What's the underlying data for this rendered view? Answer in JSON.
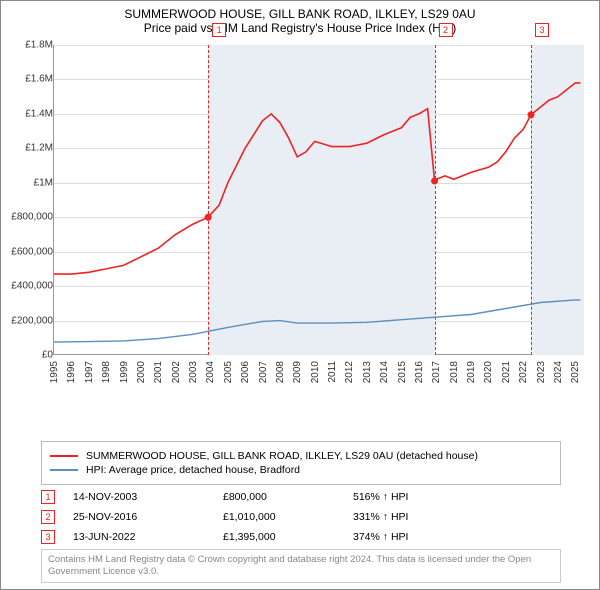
{
  "title": {
    "line1": "SUMMERWOOD HOUSE, GILL BANK ROAD, ILKLEY, LS29 0AU",
    "line2": "Price paid vs. HM Land Registry's House Price Index (HPI)"
  },
  "chart": {
    "type": "line",
    "background_color": "#ffffff",
    "shade_color": "#e8eef4",
    "grid_color": "#dddddd",
    "axis_color": "#999999",
    "xlim_years": [
      1995,
      2025.5
    ],
    "ylim": [
      0,
      1800000
    ],
    "ytick_step": 200000,
    "ytick_labels": [
      "£0",
      "£200,000",
      "£400,000",
      "£600,000",
      "£800,000",
      "£1M",
      "£1.2M",
      "£1.4M",
      "£1.6M",
      "£1.8M"
    ],
    "xtick_years": [
      1995,
      1996,
      1997,
      1998,
      1999,
      2000,
      2001,
      2002,
      2003,
      2004,
      2005,
      2006,
      2007,
      2008,
      2009,
      2010,
      2011,
      2012,
      2013,
      2014,
      2015,
      2016,
      2017,
      2018,
      2019,
      2020,
      2021,
      2022,
      2023,
      2024,
      2025
    ],
    "shaded_ranges": [
      [
        2003.87,
        2016.9
      ],
      [
        2022.45,
        2025.5
      ]
    ],
    "vlines_years": [
      2003.87,
      2016.9,
      2022.45
    ],
    "markers": [
      {
        "label": "1",
        "year": 2003.87,
        "price": 800000
      },
      {
        "label": "2",
        "year": 2016.9,
        "price": 1010000
      },
      {
        "label": "3",
        "year": 2022.45,
        "price": 1395000
      }
    ],
    "marker_top_year_offset": 0,
    "series": [
      {
        "name": "SUMMERWOOD HOUSE, GILL BANK ROAD, ILKLEY, LS29 0AU (detached house)",
        "color": "#ee2222",
        "line_width": 1.6,
        "points": [
          [
            1995,
            470000
          ],
          [
            1996,
            470000
          ],
          [
            1997,
            480000
          ],
          [
            1998,
            500000
          ],
          [
            1999,
            520000
          ],
          [
            2000,
            570000
          ],
          [
            2001,
            620000
          ],
          [
            2002,
            700000
          ],
          [
            2003,
            760000
          ],
          [
            2003.87,
            800000
          ],
          [
            2004.5,
            870000
          ],
          [
            2005,
            1000000
          ],
          [
            2006,
            1200000
          ],
          [
            2007,
            1360000
          ],
          [
            2007.5,
            1400000
          ],
          [
            2008,
            1350000
          ],
          [
            2008.5,
            1260000
          ],
          [
            2009,
            1150000
          ],
          [
            2009.5,
            1180000
          ],
          [
            2010,
            1240000
          ],
          [
            2011,
            1210000
          ],
          [
            2012,
            1210000
          ],
          [
            2013,
            1230000
          ],
          [
            2014,
            1280000
          ],
          [
            2015,
            1320000
          ],
          [
            2015.5,
            1380000
          ],
          [
            2016,
            1400000
          ],
          [
            2016.5,
            1430000
          ],
          [
            2016.9,
            1010000
          ],
          [
            2017,
            1020000
          ],
          [
            2017.5,
            1040000
          ],
          [
            2018,
            1020000
          ],
          [
            2018.5,
            1040000
          ],
          [
            2019,
            1060000
          ],
          [
            2020,
            1090000
          ],
          [
            2020.5,
            1120000
          ],
          [
            2021,
            1180000
          ],
          [
            2021.5,
            1260000
          ],
          [
            2022,
            1310000
          ],
          [
            2022.45,
            1395000
          ],
          [
            2023,
            1440000
          ],
          [
            2023.5,
            1480000
          ],
          [
            2024,
            1500000
          ],
          [
            2024.5,
            1540000
          ],
          [
            2025,
            1580000
          ],
          [
            2025.3,
            1580000
          ]
        ]
      },
      {
        "name": "HPI: Average price, detached house, Bradford",
        "color": "#5b8fbf",
        "line_width": 1.4,
        "points": [
          [
            1995,
            75000
          ],
          [
            1997,
            78000
          ],
          [
            1999,
            82000
          ],
          [
            2001,
            95000
          ],
          [
            2003,
            120000
          ],
          [
            2005,
            160000
          ],
          [
            2007,
            195000
          ],
          [
            2008,
            200000
          ],
          [
            2009,
            185000
          ],
          [
            2011,
            185000
          ],
          [
            2013,
            190000
          ],
          [
            2015,
            205000
          ],
          [
            2017,
            220000
          ],
          [
            2019,
            235000
          ],
          [
            2021,
            270000
          ],
          [
            2023,
            305000
          ],
          [
            2025,
            320000
          ],
          [
            2025.3,
            320000
          ]
        ]
      }
    ]
  },
  "legend": {
    "items": [
      {
        "color": "#ee2222",
        "label": "SUMMERWOOD HOUSE, GILL BANK ROAD, ILKLEY, LS29 0AU (detached house)"
      },
      {
        "color": "#5b8fbf",
        "label": "HPI: Average price, detached house, Bradford"
      }
    ]
  },
  "transactions": [
    {
      "num": "1",
      "date": "14-NOV-2003",
      "price": "£800,000",
      "pct": "516% ↑ HPI"
    },
    {
      "num": "2",
      "date": "25-NOV-2016",
      "price": "£1,010,000",
      "pct": "331% ↑ HPI"
    },
    {
      "num": "3",
      "date": "13-JUN-2022",
      "price": "£1,395,000",
      "pct": "374% ↑ HPI"
    }
  ],
  "footer": "Contains HM Land Registry data © Crown copyright and database right 2024. This data is licensed under the Open Government Licence v3.0."
}
